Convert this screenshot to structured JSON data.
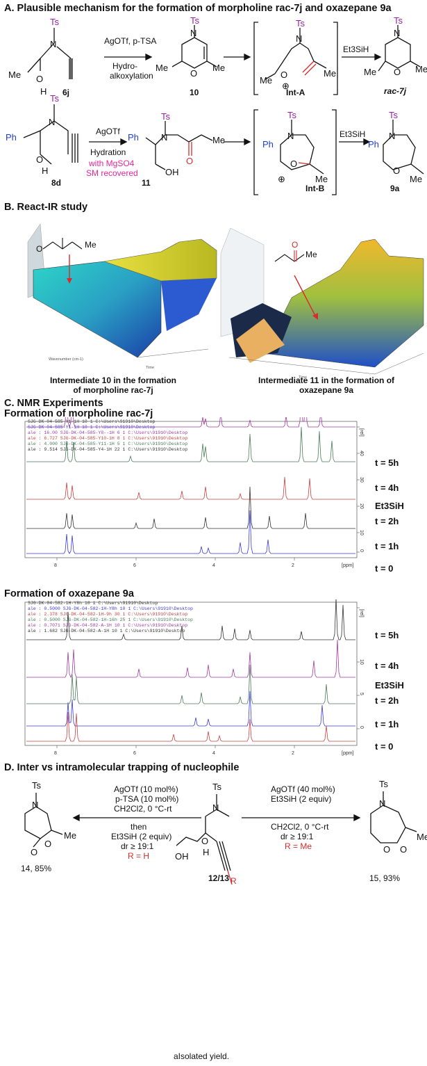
{
  "sectionA": {
    "title": "A. Plausible mechanism for the formation of morpholine rac-7j and oxazepane 9a",
    "row1": {
      "sm": "6j",
      "reagents": "AgOTf, p-TSA",
      "cond1": "Hydro-",
      "cond2": "alkoxylation",
      "intermediate": "10",
      "int": "Int-A",
      "reductant": "Et3SiH",
      "product": "rac-7j"
    },
    "row2": {
      "sm": "8d",
      "reagent": "AgOTf",
      "cond": "Hydration",
      "note1": "with MgSO4",
      "note2": "SM recovered",
      "intermediate": "11",
      "int": "Int-B",
      "reductant": "Et3SiH",
      "product": "9a"
    }
  },
  "sectionB": {
    "title": "B. React-IR study",
    "caption_left1": "Intermediate 10 in the formation",
    "caption_left2": "of morpholine rac-7j",
    "caption_right1": "Intermediate 11 in the formation of",
    "caption_right2": "oxazepane 9a"
  },
  "sectionC": {
    "title": "C. NMR Experiments",
    "sub1": "Formation of morpholine rac-7j",
    "sub2": "Formation of oxazepane 9a",
    "spectrum1": {
      "legend": [
        "SJG-DK-04-585-Y1-1H  10  1  C:\\Users\\91910\\Desktop",
        "SJG-DK-04-585-Y1-1H  10  1  C:\\Users\\91910\\Desktop",
        "ale : 16.00   SJG-DK-04-585-Y8--1H  6  1  C:\\Users\\91910\\Desktop",
        "ale : 6.727   SJG-DK-04-585-Y10-1H  8  1  C:\\Users\\91910\\Desktop",
        "ale : 4.000   SJG-DK-04-585-Y11-1H  5  1  C:\\Users\\91910\\Desktop",
        "ale : 9.514   SJG-DK-04-585-Y4-1H  22  1  C:\\Users\\91910\\Desktop"
      ],
      "traces": [
        "t = 5h",
        "t = 4h",
        "Et3SiH",
        "t = 2h",
        "t = 1h",
        "t = 0"
      ],
      "x_ticks": [
        "8",
        "6",
        "4",
        "2",
        "[ppm]"
      ],
      "y_ticks": [
        "[rel]",
        "40",
        "30",
        "20",
        "10",
        "0"
      ]
    },
    "spectrum2": {
      "legend": [
        "SJG-DK-04-582-1H-Y8h  10  1  C:\\Users\\91910\\Desktop",
        "ale : 0.5000  SJG-DK-04-582-1H-Y8h  10  1  C:\\Users\\91910\\Desktop",
        "ale : 2.378   SJG-DK-04-582-1H-9h  30  1  C:\\Users\\91910\\Desktop",
        "ale : 0.5000  SJG-DK-04-582-1H-16h  25  1  C:\\Users\\91910\\Desktop",
        "ale : 0.7071  SJG-DK-04-582-A-1H  10  1  C:\\Users\\91910\\Desktop",
        "ale : 1.682   SJG-DK-04-582-A-1H  10  1  C:\\Users\\91910\\Desktop"
      ],
      "traces": [
        "t = 5h",
        "t = 4h",
        "Et3SiH",
        "t = 2h",
        "t = 1h",
        "t = 0"
      ],
      "x_ticks": [
        "8",
        "6",
        "4",
        "2",
        "[ppm]"
      ],
      "y_ticks": [
        "[rel]",
        "10",
        "5",
        "0"
      ]
    }
  },
  "sectionD": {
    "title": "D. Inter vs intramolecular trapping of nucleophile",
    "left": {
      "l1": "AgOTf (10 mol%)",
      "l2": "p-TSA (10 mol%)",
      "l3": "CH2Cl2, 0 °C-rt",
      "l4": "then",
      "l5": "Et3SiH (2 equiv)",
      "l6": "dr ≥ 19:1",
      "l7": "R = H",
      "product": "14, 85%"
    },
    "center": {
      "sm": "12/13",
      "R": "R"
    },
    "right": {
      "l1": "AgOTf (40 mol%)",
      "l2": "Et3SiH (2 equiv)",
      "l3": "CH2Cl2, 0 °C-rt",
      "l4": "dr ≥ 19:1",
      "l5": "R = Me",
      "product": "15, 93%"
    },
    "footnote": "aIsolated yield."
  },
  "colors": {
    "ts": "#9b1fa8",
    "carbonyl": "#d62c2c",
    "phenyl": "#1d3fd8",
    "note": "#e6269b",
    "traces": [
      "#a03aa0",
      "#4c7a5c",
      "#c84040",
      "#333333",
      "#3a3ae0"
    ]
  }
}
